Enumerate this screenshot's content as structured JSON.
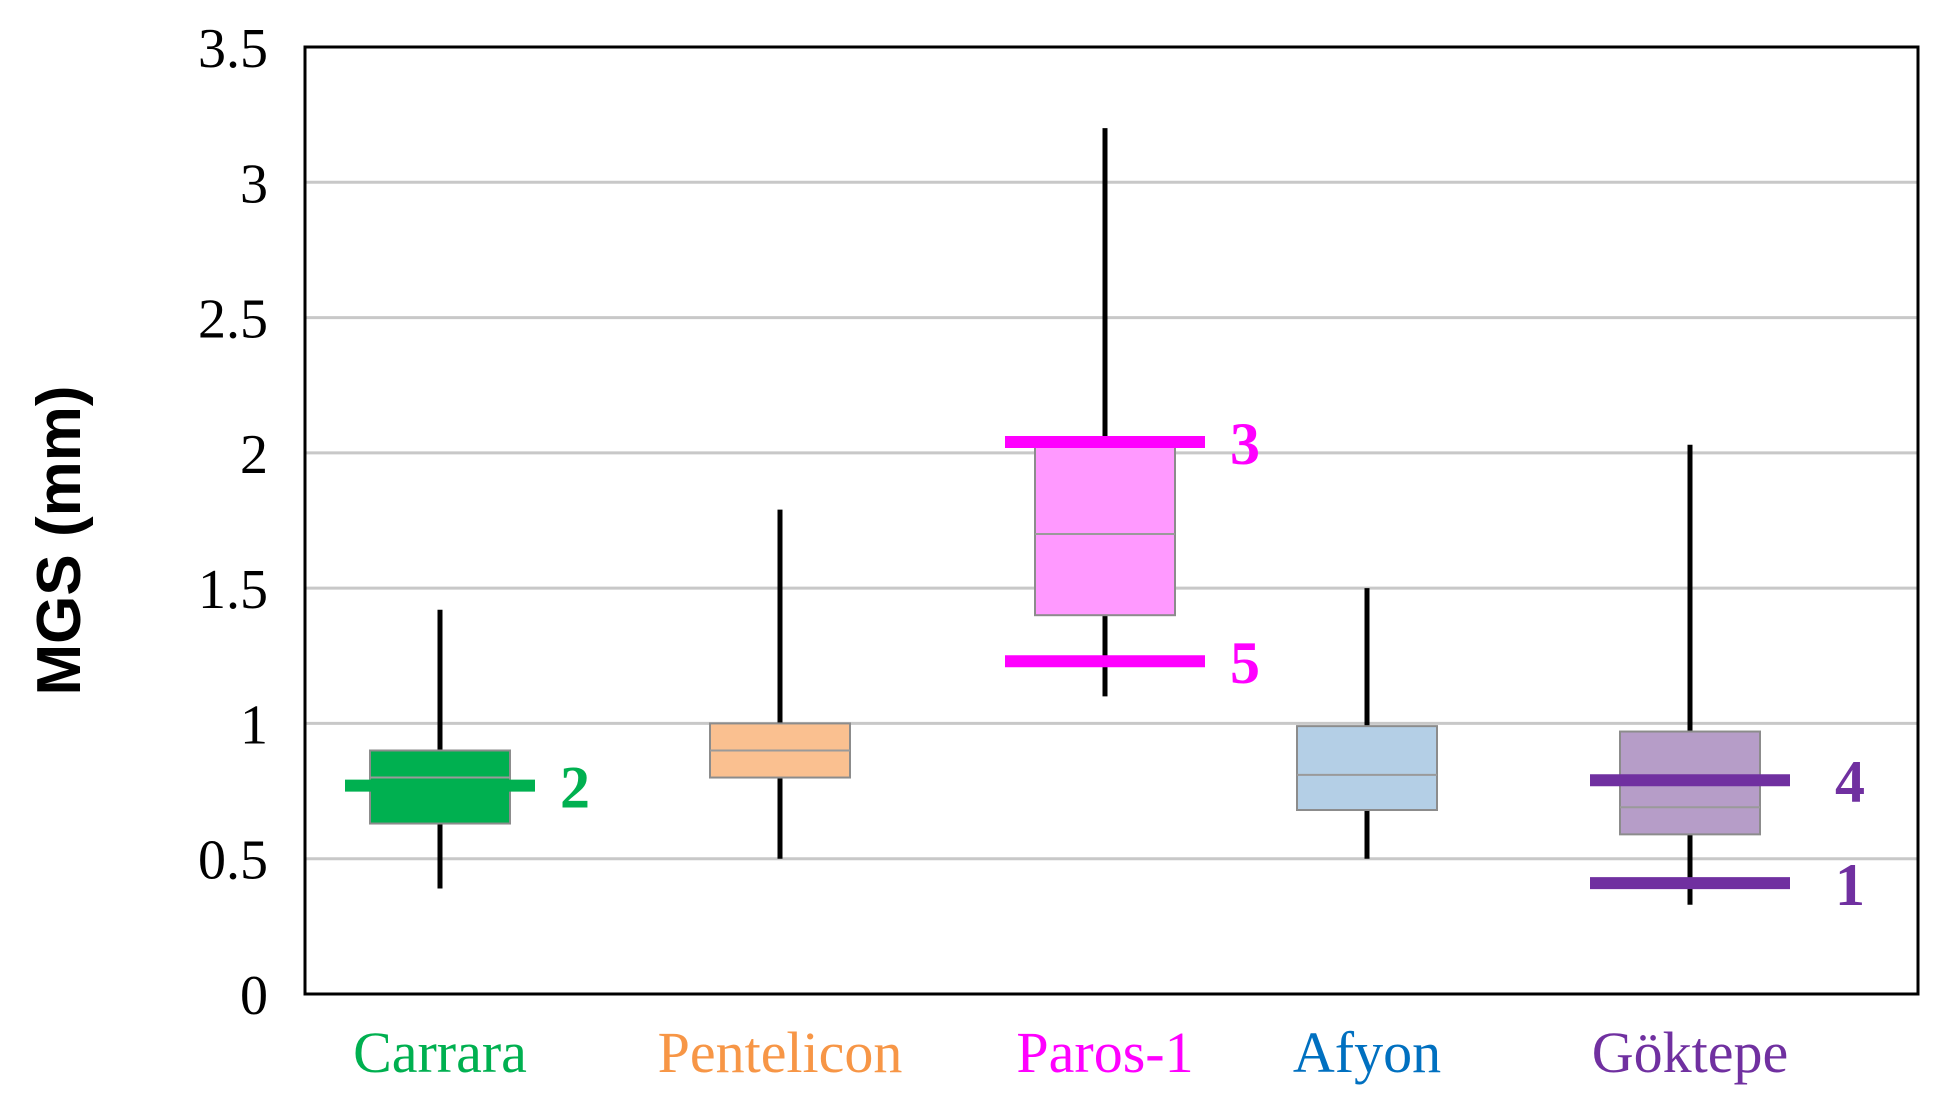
{
  "chart_data": {
    "type": "box",
    "title": "",
    "xlabel": "",
    "ylabel": "MGS (mm)",
    "ylim": [
      0,
      3.5
    ],
    "yticks": [
      0,
      0.5,
      1,
      1.5,
      2,
      2.5,
      3,
      3.5
    ],
    "ytick_labels": [
      "0",
      "0.5",
      "1",
      "1.5",
      "2",
      "2.5",
      "3",
      "3.5"
    ],
    "grid": "horizontal",
    "categories": [
      "Carrara",
      "Pentelicon",
      "Paros-1",
      "Afyon",
      "Göktepe"
    ],
    "boxes": [
      {
        "category": "Carrara",
        "min": 0.39,
        "q1": 0.63,
        "median": 0.8,
        "q3": 0.9,
        "max": 1.42,
        "label_color": "#00b050",
        "fill": "#00b050",
        "median_color": "#9a9a9a"
      },
      {
        "category": "Pentelicon",
        "min": 0.5,
        "q1": 0.8,
        "median": 0.9,
        "q3": 1.0,
        "max": 1.79,
        "label_color": "#f79646",
        "fill": "#fac090",
        "median_color": "#9a9a9a"
      },
      {
        "category": "Paros-1",
        "min": 1.1,
        "q1": 1.4,
        "median": 1.7,
        "q3": 2.03,
        "max": 3.2,
        "label_color": "#ff00ff",
        "fill": "#ff99ff",
        "median_color": "#9a9a9a"
      },
      {
        "category": "Afyon",
        "min": 0.5,
        "q1": 0.68,
        "median": 0.81,
        "q3": 0.99,
        "max": 1.5,
        "label_color": "#0070c0",
        "fill": "#b4cfe6",
        "median_color": "#9a9a9a"
      },
      {
        "category": "Göktepe",
        "min": 0.33,
        "q1": 0.59,
        "median": 0.69,
        "q3": 0.97,
        "max": 2.03,
        "label_color": "#7030a0",
        "fill": "#b69dc8",
        "median_color": "#9a9a9a"
      }
    ],
    "markers": [
      {
        "category": "Carrara",
        "value": 0.77,
        "label": "2",
        "color": "#00b050"
      },
      {
        "category": "Paros-1",
        "value": 2.04,
        "label": "3",
        "color": "#ff00ff"
      },
      {
        "category": "Paros-1",
        "value": 1.23,
        "label": "5",
        "color": "#ff00ff"
      },
      {
        "category": "Göktepe",
        "value": 0.79,
        "label": "4",
        "color": "#7030a0"
      },
      {
        "category": "Göktepe",
        "value": 0.41,
        "label": "1",
        "color": "#7030a0"
      }
    ]
  }
}
